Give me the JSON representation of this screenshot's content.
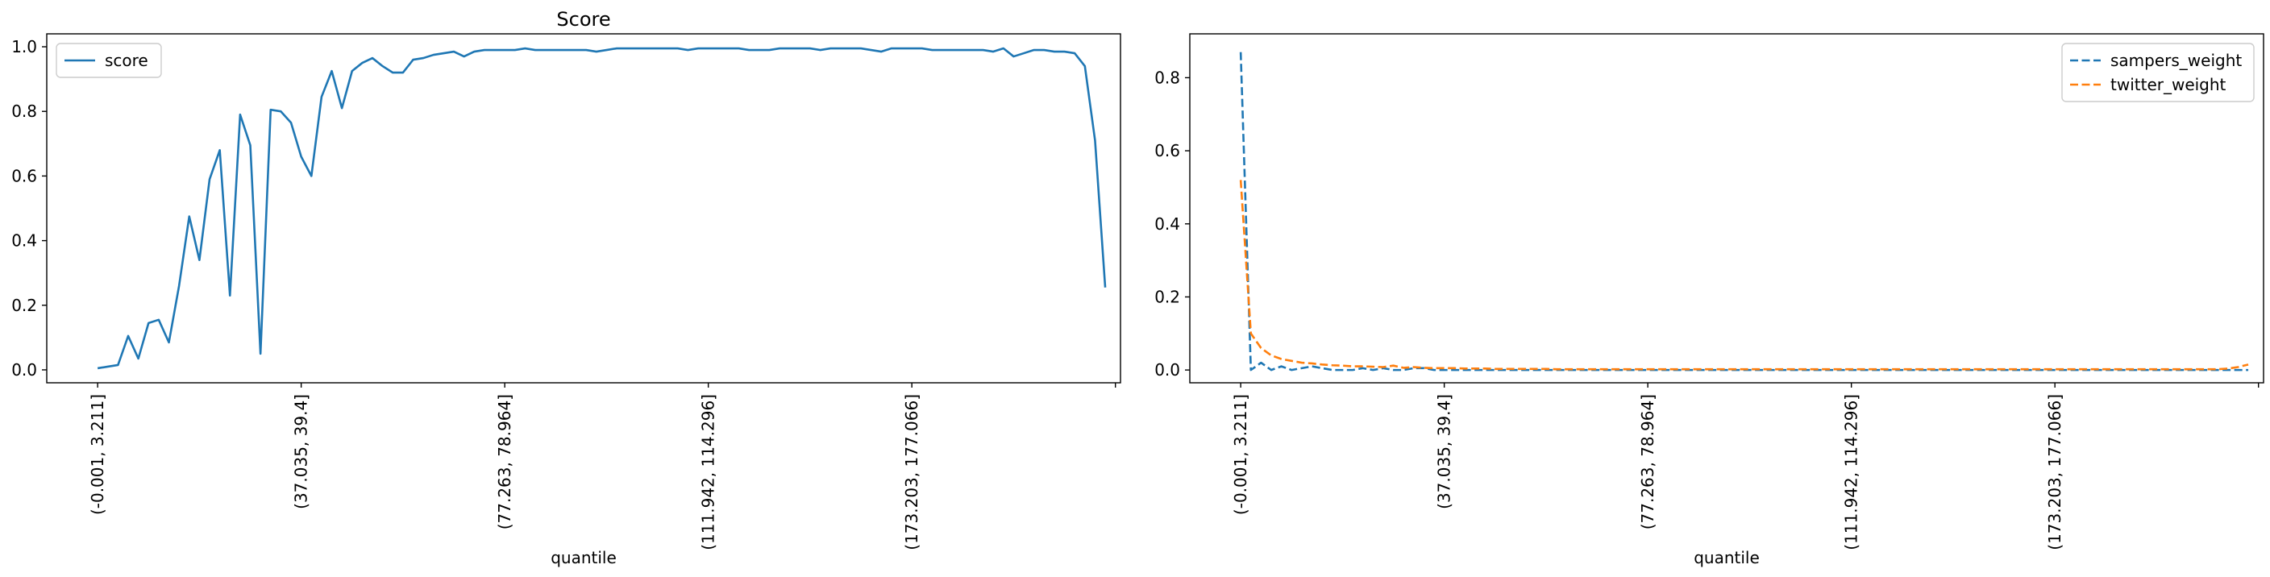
{
  "chart_data": [
    {
      "type": "line",
      "title": "Score",
      "xlabel": "quantile",
      "ylabel": "",
      "ylim": [
        -0.04,
        1.04
      ],
      "yticks": [
        0.0,
        0.2,
        0.4,
        0.6,
        0.8,
        1.0
      ],
      "ytick_labels": [
        "0.0",
        "0.2",
        "0.4",
        "0.6",
        "0.8",
        "1.0"
      ],
      "xticks": [
        0,
        20,
        40,
        60,
        80,
        100
      ],
      "xtick_labels": [
        "(-0.001, 3.211]",
        "(37.035, 39.4]",
        "(77.263, 78.964]",
        "(111.942, 114.296]",
        "(173.203, 177.066]",
        ""
      ],
      "xlim": [
        -5,
        100.5
      ],
      "grid": false,
      "legend_position": "upper-left",
      "series": [
        {
          "name": "score",
          "color": "#1f77b4",
          "style": "solid",
          "values": [
            0.005,
            0.01,
            0.015,
            0.105,
            0.035,
            0.145,
            0.155,
            0.085,
            0.26,
            0.475,
            0.34,
            0.59,
            0.68,
            0.23,
            0.79,
            0.695,
            0.05,
            0.805,
            0.8,
            0.765,
            0.66,
            0.6,
            0.845,
            0.925,
            0.81,
            0.925,
            0.95,
            0.965,
            0.94,
            0.92,
            0.92,
            0.96,
            0.965,
            0.975,
            0.98,
            0.985,
            0.97,
            0.985,
            0.99,
            0.99,
            0.99,
            0.99,
            0.995,
            0.99,
            0.99,
            0.99,
            0.99,
            0.99,
            0.99,
            0.985,
            0.99,
            0.995,
            0.995,
            0.995,
            0.995,
            0.995,
            0.995,
            0.995,
            0.99,
            0.995,
            0.995,
            0.995,
            0.995,
            0.995,
            0.99,
            0.99,
            0.99,
            0.995,
            0.995,
            0.995,
            0.995,
            0.99,
            0.995,
            0.995,
            0.995,
            0.995,
            0.99,
            0.985,
            0.995,
            0.995,
            0.995,
            0.995,
            0.99,
            0.99,
            0.99,
            0.99,
            0.99,
            0.99,
            0.985,
            0.995,
            0.97,
            0.98,
            0.99,
            0.99,
            0.985,
            0.985,
            0.98,
            0.94,
            0.71,
            0.255
          ]
        }
      ]
    },
    {
      "type": "line",
      "title": "",
      "xlabel": "quantile",
      "ylabel": "",
      "ylim": [
        -0.035,
        0.92
      ],
      "yticks": [
        0.0,
        0.2,
        0.4,
        0.6,
        0.8
      ],
      "ytick_labels": [
        "0.0",
        "0.2",
        "0.4",
        "0.6",
        "0.8"
      ],
      "xticks": [
        0,
        20,
        40,
        60,
        80,
        100
      ],
      "xtick_labels": [
        "(-0.001, 3.211]",
        "(37.035, 39.4]",
        "(77.263, 78.964]",
        "(111.942, 114.296]",
        "(173.203, 177.066]",
        ""
      ],
      "xlim": [
        -5,
        100.5
      ],
      "grid": false,
      "legend_position": "upper-right",
      "series": [
        {
          "name": "sampers_weight",
          "color": "#1f77b4",
          "style": "dashed",
          "values": [
            0.87,
            0.0,
            0.02,
            0.0,
            0.01,
            0.0,
            0.005,
            0.01,
            0.005,
            0.0,
            0.0,
            0.0,
            0.005,
            0.0,
            0.005,
            0.0,
            0.0,
            0.005,
            0.005,
            0.0,
            0.0,
            0.0,
            0.0,
            0.0,
            0.0,
            0.0,
            0.0,
            0.0,
            0.0,
            0.0,
            0.0,
            0.0,
            0.0,
            0.0,
            0.0,
            0.0,
            0.0,
            0.0,
            0.0,
            0.0,
            0.0,
            0.0,
            0.0,
            0.0,
            0.0,
            0.0,
            0.0,
            0.0,
            0.0,
            0.0,
            0.0,
            0.0,
            0.0,
            0.0,
            0.0,
            0.0,
            0.0,
            0.0,
            0.0,
            0.0,
            0.0,
            0.0,
            0.0,
            0.0,
            0.0,
            0.0,
            0.0,
            0.0,
            0.0,
            0.0,
            0.0,
            0.0,
            0.0,
            0.0,
            0.0,
            0.0,
            0.0,
            0.0,
            0.0,
            0.0,
            0.0,
            0.0,
            0.0,
            0.0,
            0.0,
            0.0,
            0.0,
            0.0,
            0.0,
            0.0,
            0.0,
            0.0,
            0.0,
            0.0,
            0.0,
            0.0,
            0.0,
            0.0,
            0.0,
            0.0
          ]
        },
        {
          "name": "twitter_weight",
          "color": "#ff7f0e",
          "style": "dashed",
          "values": [
            0.52,
            0.1,
            0.06,
            0.04,
            0.03,
            0.025,
            0.02,
            0.018,
            0.015,
            0.013,
            0.012,
            0.01,
            0.01,
            0.009,
            0.008,
            0.012,
            0.006,
            0.008,
            0.006,
            0.005,
            0.005,
            0.005,
            0.004,
            0.004,
            0.004,
            0.003,
            0.003,
            0.003,
            0.003,
            0.003,
            0.003,
            0.002,
            0.002,
            0.002,
            0.002,
            0.002,
            0.002,
            0.002,
            0.002,
            0.002,
            0.002,
            0.002,
            0.002,
            0.002,
            0.002,
            0.002,
            0.002,
            0.002,
            0.002,
            0.002,
            0.002,
            0.002,
            0.002,
            0.002,
            0.002,
            0.002,
            0.002,
            0.002,
            0.002,
            0.002,
            0.002,
            0.002,
            0.002,
            0.002,
            0.002,
            0.002,
            0.002,
            0.002,
            0.002,
            0.002,
            0.002,
            0.002,
            0.002,
            0.002,
            0.002,
            0.002,
            0.002,
            0.002,
            0.002,
            0.002,
            0.002,
            0.002,
            0.002,
            0.002,
            0.002,
            0.002,
            0.002,
            0.002,
            0.002,
            0.002,
            0.002,
            0.002,
            0.002,
            0.002,
            0.002,
            0.002,
            0.002,
            0.004,
            0.008,
            0.015
          ]
        }
      ]
    }
  ]
}
